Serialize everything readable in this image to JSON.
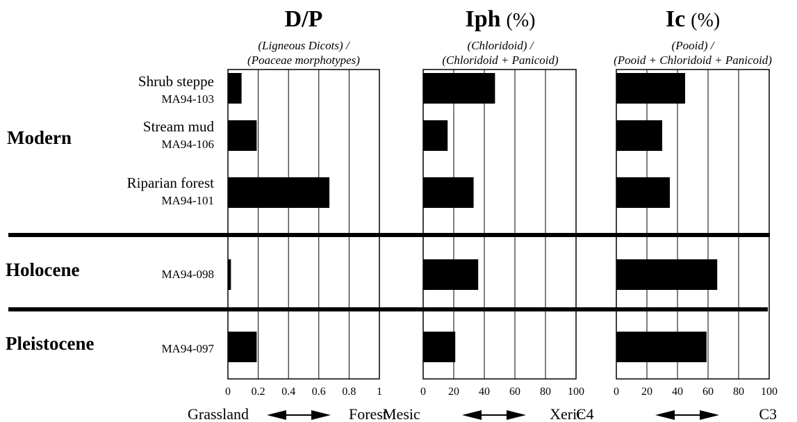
{
  "chart_data": [
    {
      "type": "bar",
      "orientation": "horizontal",
      "title": "D/P",
      "title_unit": "",
      "formula": [
        "(Ligneous Dicots) /",
        "(Poaceae morphotypes)"
      ],
      "xlim": [
        0,
        1
      ],
      "ticks": [
        "0",
        "0.2",
        "0.4",
        "0.6",
        "0.8",
        "1"
      ],
      "scale": {
        "left": "Grassland",
        "right": "Forest"
      },
      "values": [
        0.09,
        0.19,
        0.67,
        0.02,
        0.19
      ]
    },
    {
      "type": "bar",
      "orientation": "horizontal",
      "title": "Iph",
      "title_unit": "(%)",
      "formula": [
        "(Chloridoid) /",
        "(Chloridoid + Panicoid)"
      ],
      "xlim": [
        0,
        100
      ],
      "ticks": [
        "0",
        "20",
        "40",
        "60",
        "80",
        "100"
      ],
      "scale": {
        "left": "Mesic",
        "right": "Xeric"
      },
      "values": [
        47,
        16,
        33,
        36,
        21
      ]
    },
    {
      "type": "bar",
      "orientation": "horizontal",
      "title": "Ic",
      "title_unit": "(%)",
      "formula": [
        "(Pooid) /",
        "(Pooid + Chloridoid + Panicoid)"
      ],
      "xlim": [
        0,
        100
      ],
      "ticks": [
        "0",
        "20",
        "40",
        "60",
        "80",
        "100"
      ],
      "scale": {
        "left": "C4",
        "right": "C3"
      },
      "values": [
        45,
        30,
        35,
        66,
        59
      ]
    }
  ],
  "rows": [
    {
      "name": "Shrub steppe",
      "code": "MA94-103"
    },
    {
      "name": "Stream mud",
      "code": "MA94-106"
    },
    {
      "name": "Riparian forest",
      "code": "MA94-101"
    },
    {
      "name": "",
      "code": "MA94-098"
    },
    {
      "name": "",
      "code": "MA94-097"
    }
  ],
  "groups": [
    "Modern",
    "Holocene",
    "Pleistocene"
  ]
}
